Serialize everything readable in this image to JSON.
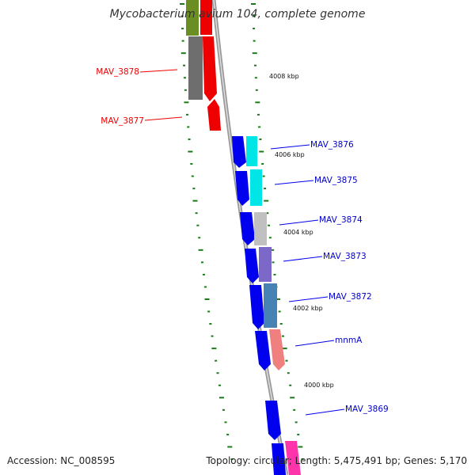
{
  "title": "Mycobacterium avium 104, complete genome",
  "footer": {
    "accession": "Accession: NC_008595",
    "summary": "Topology: circular; Length: 5,475,491 bp; Genes: 5,170"
  },
  "ticks": [
    "4008 kbp",
    "4006 kbp",
    "4004 kbp",
    "4002 kbp",
    "4000 kbp"
  ],
  "genes": [
    {
      "label": "MAV_3878",
      "strand": "reverse",
      "color": "#ff0000"
    },
    {
      "label": "MAV_3877",
      "strand": "reverse",
      "color": "#ff0000"
    },
    {
      "label": "MAV_3876",
      "strand": "forward",
      "color": "#0000cc"
    },
    {
      "label": "MAV_3875",
      "strand": "forward",
      "color": "#0000cc"
    },
    {
      "label": "MAV_3874",
      "strand": "forward",
      "color": "#0000cc"
    },
    {
      "label": "MAV_3873",
      "strand": "forward",
      "color": "#0000cc"
    },
    {
      "label": "MAV_3872",
      "strand": "forward",
      "color": "#0000cc"
    },
    {
      "label": "mnmA",
      "strand": "forward",
      "color": "#0000cc"
    },
    {
      "label": "MAV_3869",
      "strand": "forward",
      "color": "#0000cc"
    }
  ],
  "colors": {
    "backbone": "#888888",
    "forward_cds": "#0000ee",
    "reverse_cds": "#ee0000",
    "tick_marks": "#1a7a1a",
    "cog_gray": "#6e6e6e",
    "cog_olive": "#6b8e23",
    "cog_cyan": "#00e5e5",
    "cog_silver": "#c0c0c0",
    "cog_violet": "#7b68c8",
    "cog_steelblue": "#4682b4",
    "cog_salmon": "#f08080",
    "cog_pink": "#ff33aa"
  }
}
